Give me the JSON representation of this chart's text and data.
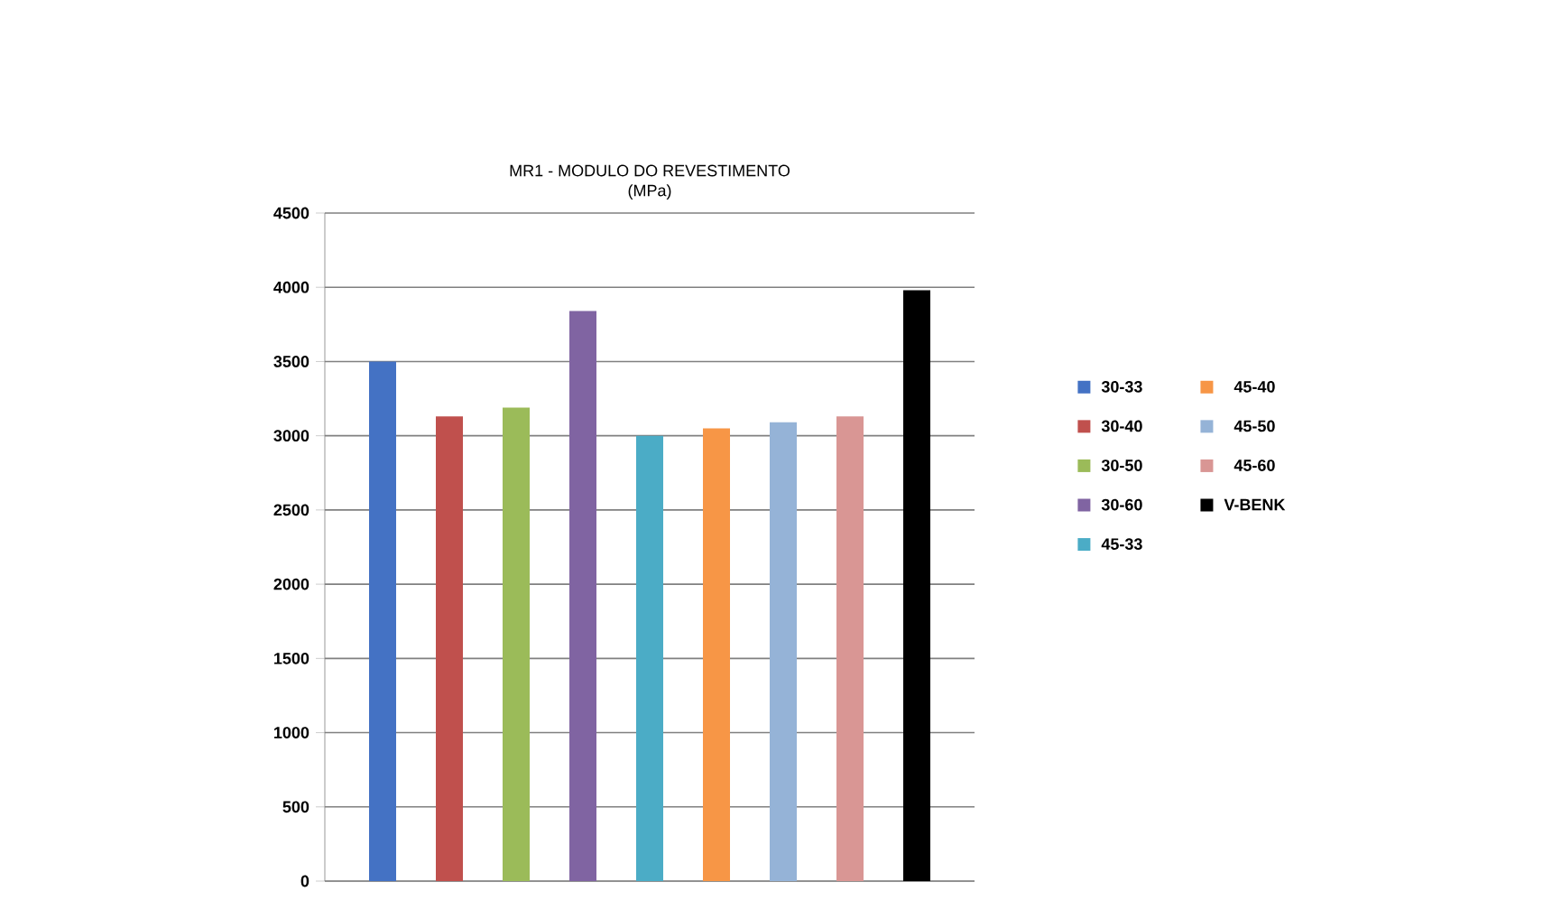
{
  "chart_data": {
    "type": "bar",
    "title": "MR1 - MODULO DO REVESTIMENTO\n(MPa)",
    "categories": [
      null
    ],
    "series": [
      {
        "name": "30-33",
        "color": "#4472c4",
        "values": [
          3500
        ]
      },
      {
        "name": "30-40",
        "color": "#c0504d",
        "values": [
          3130
        ]
      },
      {
        "name": "30-50",
        "color": "#9bbb59",
        "values": [
          3190
        ]
      },
      {
        "name": "30-60",
        "color": "#8064a2",
        "values": [
          3840
        ]
      },
      {
        "name": "45-33",
        "color": "#4bacc6",
        "values": [
          3000
        ]
      },
      {
        "name": "45-40",
        "color": "#f79646",
        "values": [
          3050
        ]
      },
      {
        "name": "45-50",
        "color": "#95b3d7",
        "values": [
          3090
        ]
      },
      {
        "name": "45-60",
        "color": "#d99694",
        "values": [
          3130
        ]
      },
      {
        "name": "V-BENK",
        "color": "#000000",
        "values": [
          3980
        ]
      }
    ],
    "ylim": [
      0,
      4500
    ],
    "yticks": [
      0,
      500,
      1000,
      1500,
      2000,
      2500,
      3000,
      3500,
      4000,
      4500
    ],
    "grid": "y",
    "legend": "right"
  }
}
